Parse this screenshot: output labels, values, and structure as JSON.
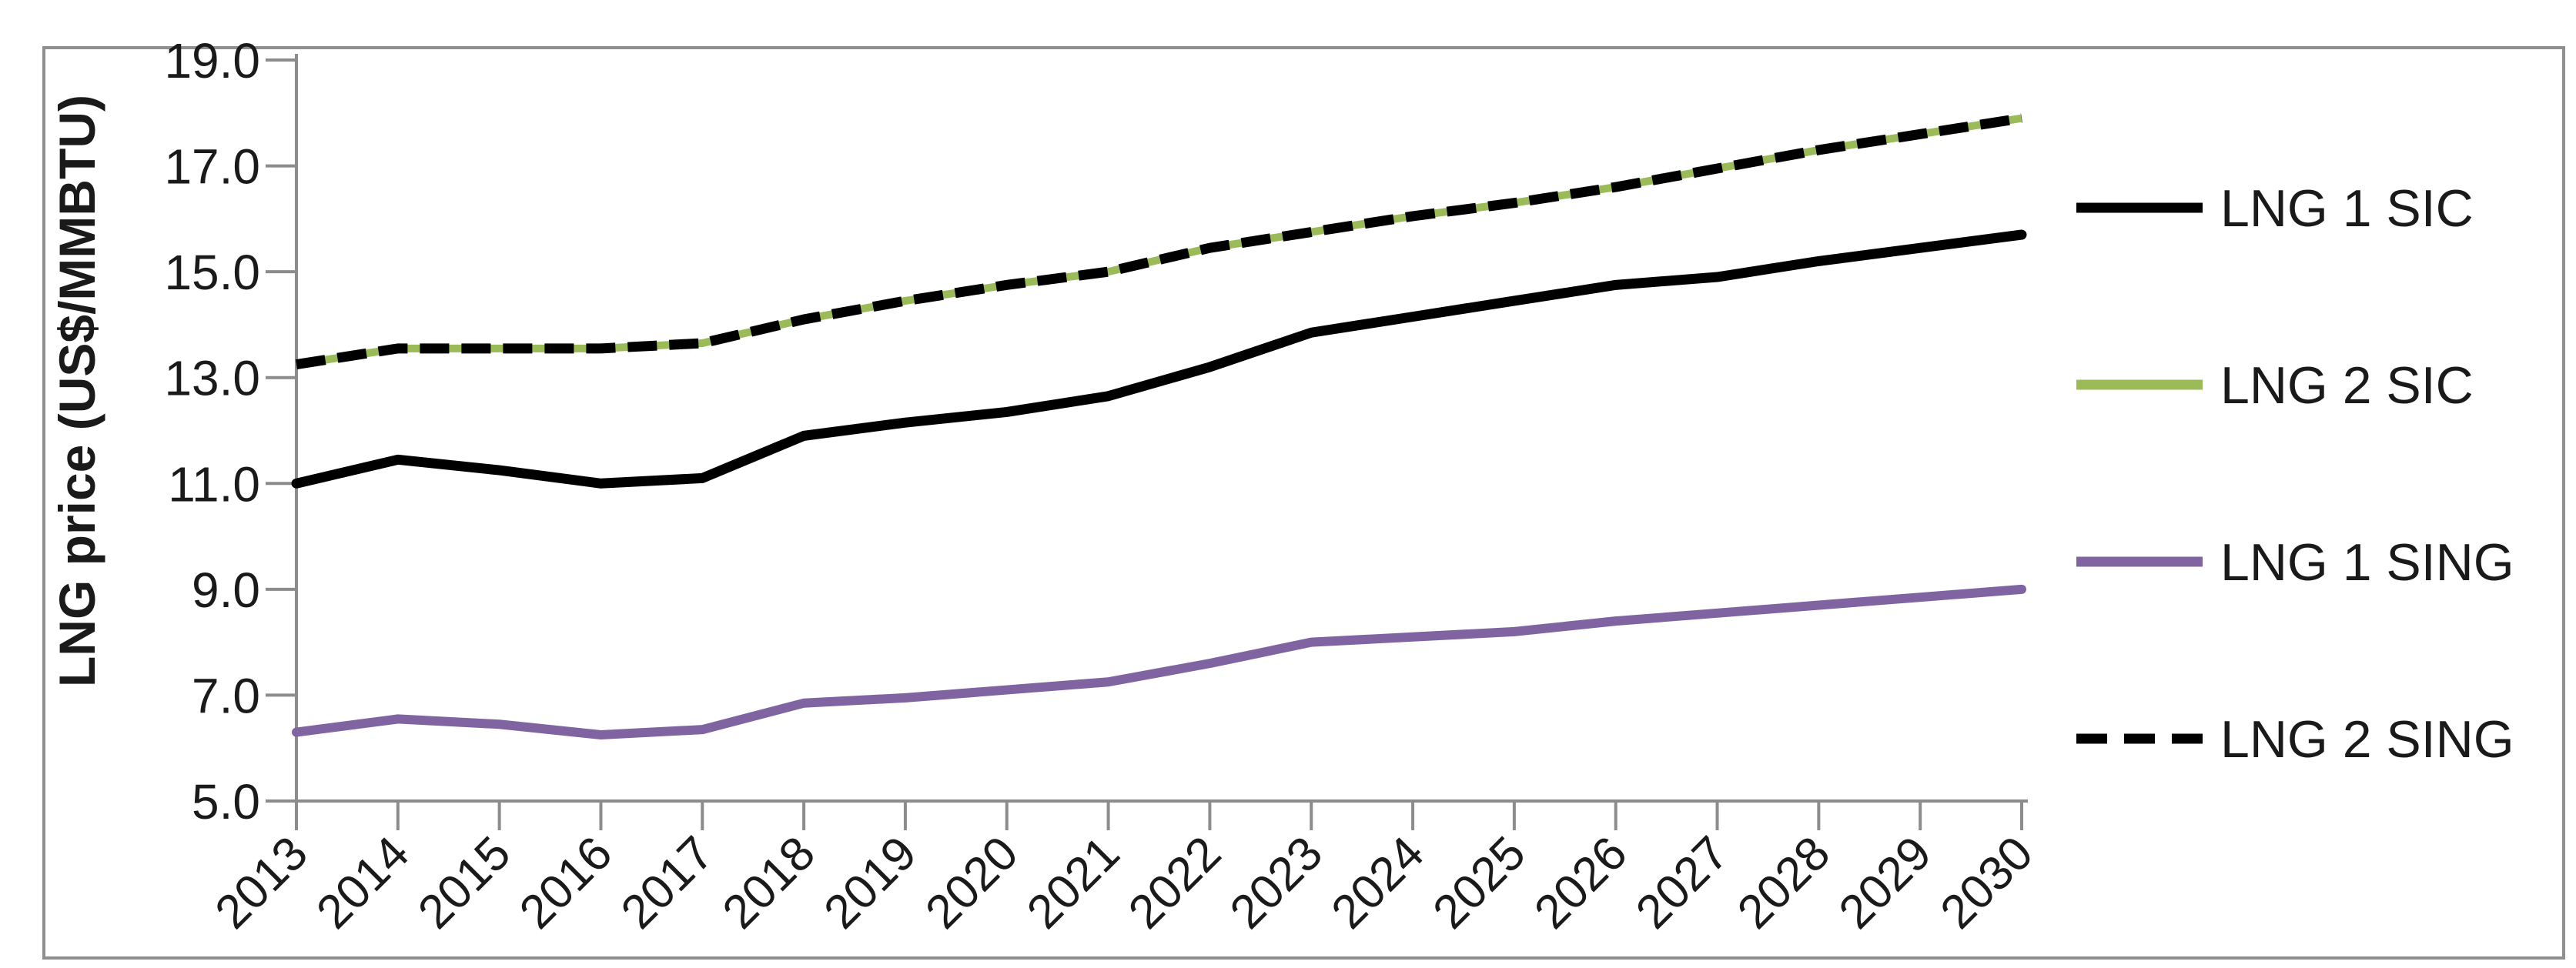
{
  "chart_data": {
    "type": "line",
    "title": "",
    "xlabel": "",
    "ylabel": "LNG price (US$/MMBTU)",
    "categories": [
      "2013",
      "2014",
      "2015",
      "2016",
      "2017",
      "2018",
      "2019",
      "2020",
      "2021",
      "2022",
      "2023",
      "2024",
      "2025",
      "2026",
      "2027",
      "2028",
      "2029",
      "2030"
    ],
    "ylim": [
      5.0,
      19.0
    ],
    "ytick_step": 2.0,
    "ytick_labels": [
      "5.0",
      "7.0",
      "9.0",
      "11.0",
      "13.0",
      "15.0",
      "17.0",
      "19.0"
    ],
    "grid": false,
    "legend_position": "right",
    "note": "LNG 2 SIC (green solid) and LNG 2 SING (black dashed) overlap exactly; dashed line is drawn on top of the green line",
    "series": [
      {
        "name": "LNG 1 SIC",
        "color": "#000000",
        "style": "solid",
        "values": [
          11.0,
          11.45,
          11.25,
          11.0,
          11.1,
          11.9,
          12.15,
          12.35,
          12.65,
          13.2,
          13.85,
          14.15,
          14.45,
          14.75,
          14.9,
          15.2,
          15.45,
          15.7
        ]
      },
      {
        "name": "LNG 2 SIC",
        "color": "#9BBB59",
        "style": "solid",
        "values": [
          13.25,
          13.55,
          13.55,
          13.55,
          13.65,
          14.1,
          14.45,
          14.75,
          15.0,
          15.45,
          15.75,
          16.05,
          16.3,
          16.6,
          16.95,
          17.3,
          17.6,
          17.9
        ]
      },
      {
        "name": "LNG 1 SING",
        "color": "#8064A2",
        "style": "solid",
        "values": [
          6.3,
          6.55,
          6.45,
          6.25,
          6.35,
          6.85,
          6.95,
          7.1,
          7.25,
          7.6,
          8.0,
          8.1,
          8.2,
          8.4,
          8.55,
          8.7,
          8.85,
          9.0
        ]
      },
      {
        "name": "LNG 2 SING",
        "color": "#000000",
        "style": "dashed",
        "values": [
          13.25,
          13.55,
          13.55,
          13.55,
          13.65,
          14.1,
          14.45,
          14.75,
          15.0,
          15.45,
          15.75,
          16.05,
          16.3,
          16.6,
          16.95,
          17.3,
          17.6,
          17.9
        ]
      }
    ],
    "legend": [
      {
        "label": "LNG 1 SIC",
        "swatch": "black-solid-line"
      },
      {
        "label": "LNG 2 SIC",
        "swatch": "green-solid-line"
      },
      {
        "label": "LNG 1 SING",
        "swatch": "purple-solid-line"
      },
      {
        "label": "LNG 2 SING",
        "swatch": "black-dashed-line"
      }
    ]
  },
  "colors": {
    "axis": "#8C8C8C",
    "frame_border": "#8F8F8F",
    "label_text": "#1a1a1a",
    "background": "#FFFFFF",
    "series_black": "#000000",
    "series_green": "#9BBB59",
    "series_purple": "#8064A2"
  }
}
